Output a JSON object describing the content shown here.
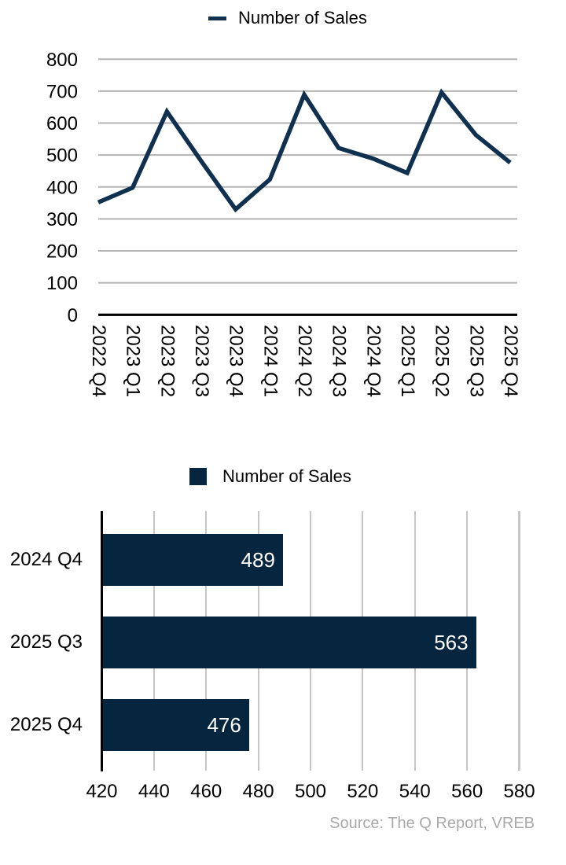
{
  "source_note": "Source: The Q Report, VREB",
  "colors": {
    "series_line": "#10304f",
    "series_bar": "#06263f",
    "line_grid": "#b3b3b3",
    "bar_grid": "#c6c6c6",
    "axis": "#000000",
    "value_label": "#ffffff",
    "source_text": "#a9a9a9"
  },
  "chart_data": [
    {
      "type": "line",
      "legend": "Number of Sales",
      "legend_position": "top",
      "categories": [
        "2022 Q4",
        "2023 Q1",
        "2023 Q2",
        "2023 Q3",
        "2023 Q4",
        "2024 Q1",
        "2024 Q2",
        "2024 Q3",
        "2024 Q4",
        "2025 Q1",
        "2025 Q2",
        "2025 Q3",
        "2025 Q4"
      ],
      "values": [
        352,
        398,
        636,
        481,
        330,
        424,
        689,
        522,
        489,
        444,
        696,
        563,
        476
      ],
      "y_ticks": [
        0,
        100,
        200,
        300,
        400,
        500,
        600,
        700,
        800
      ],
      "ylim": [
        0,
        800
      ],
      "grid": true,
      "x_label_rotation": 90
    },
    {
      "type": "bar",
      "orientation": "horizontal",
      "legend": "Number of Sales",
      "legend_position": "top",
      "categories": [
        "2024 Q4",
        "2025 Q3",
        "2025 Q4"
      ],
      "values": [
        489,
        563,
        476
      ],
      "x_ticks": [
        420,
        440,
        460,
        480,
        500,
        520,
        540,
        560,
        580
      ],
      "xlim": [
        420,
        580
      ],
      "grid": true,
      "value_labels": "inside-end"
    }
  ]
}
